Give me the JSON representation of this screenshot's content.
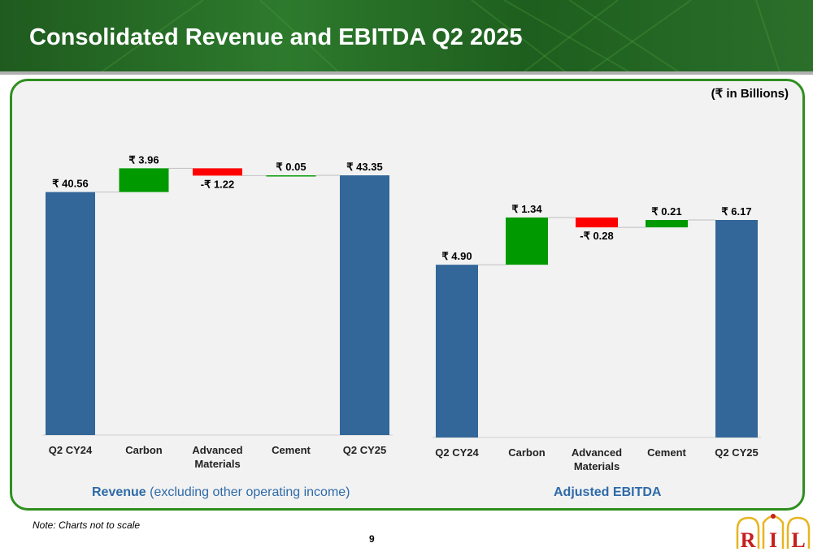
{
  "header": {
    "title": "Consolidated Revenue and EBITDA Q2 2025"
  },
  "unit_label": "(₹ in Billions)",
  "captions": {
    "revenue_bold": "Revenue",
    "revenue_rest": " (excluding other operating income)",
    "ebitda": "Adjusted EBITDA"
  },
  "note": "Note: Charts not to scale",
  "page_number": "9",
  "logo": {
    "letters": [
      "R",
      "I",
      "L"
    ]
  },
  "colors": {
    "total": "#336699",
    "increase": "#009900",
    "decrease": "#ff0000",
    "connector": "#bfbfbf"
  },
  "chart_data": [
    {
      "type": "bar",
      "subtype": "waterfall",
      "categories": [
        "Q2 CY24",
        "Carbon",
        "Advanced Materials",
        "Cement",
        "Q2 CY25"
      ],
      "values": [
        40.56,
        3.96,
        -1.22,
        0.05,
        43.35
      ],
      "kinds": [
        "total",
        "increase",
        "decrease",
        "increase",
        "total"
      ],
      "data_labels": [
        "₹ 40.56",
        "₹ 3.96",
        "-₹ 1.22",
        "₹ 0.05",
        "₹ 43.35"
      ],
      "title": "Revenue (excluding other operating income)",
      "ylim": [
        0,
        45
      ],
      "grid": false,
      "legend": "none"
    },
    {
      "type": "bar",
      "subtype": "waterfall",
      "categories": [
        "Q2 CY24",
        "Carbon",
        "Advanced Materials",
        "Cement",
        "Q2 CY25"
      ],
      "values": [
        4.9,
        1.34,
        -0.28,
        0.21,
        6.17
      ],
      "kinds": [
        "total",
        "increase",
        "decrease",
        "increase",
        "total"
      ],
      "data_labels": [
        "₹ 4.90",
        "₹ 1.34",
        "-₹ 0.28",
        "₹ 0.21",
        "₹ 6.17"
      ],
      "title": "Adjusted EBITDA",
      "ylim": [
        0,
        6.5
      ],
      "grid": false,
      "legend": "none"
    }
  ]
}
